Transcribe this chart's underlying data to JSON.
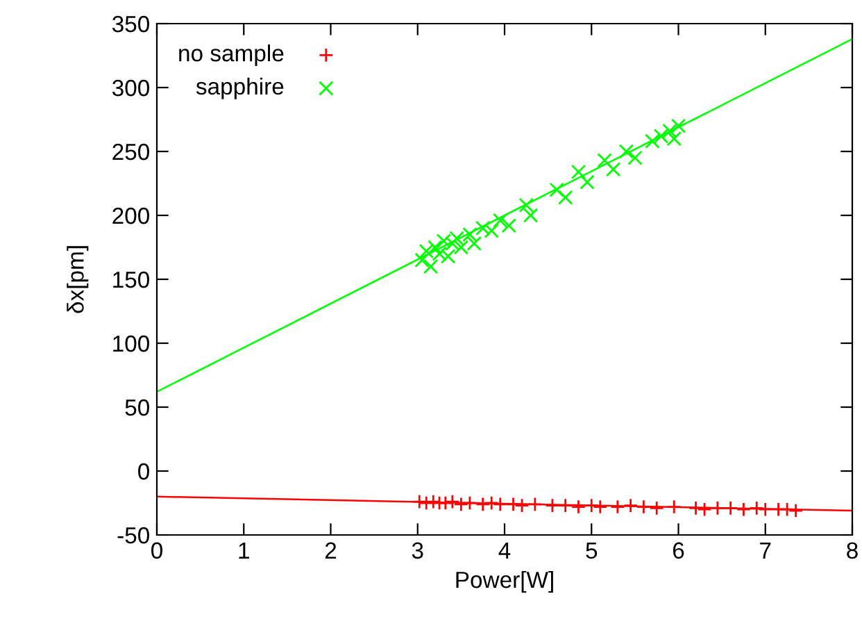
{
  "chart_data": {
    "type": "scatter",
    "xlabel": "Power[W]",
    "ylabel": "δx[pm]",
    "xlim": [
      0,
      8
    ],
    "ylim": [
      -50,
      350
    ],
    "xticks": [
      0,
      1,
      2,
      3,
      4,
      5,
      6,
      7,
      8
    ],
    "yticks": [
      -50,
      0,
      50,
      100,
      150,
      200,
      250,
      300,
      350
    ],
    "grid": false,
    "legend": "top left",
    "series": [
      {
        "name": "no sample",
        "marker": "plus",
        "color": "#ff0000",
        "x": [
          3.02,
          3.1,
          3.18,
          3.25,
          3.32,
          3.4,
          3.5,
          3.6,
          3.75,
          3.85,
          3.95,
          4.1,
          4.2,
          4.35,
          4.55,
          4.7,
          4.85,
          5.0,
          5.1,
          5.3,
          5.45,
          5.6,
          5.75,
          5.95,
          6.2,
          6.3,
          6.45,
          6.6,
          6.75,
          6.9,
          7.0,
          7.15,
          7.25,
          7.35
        ],
        "values": [
          -24,
          -25,
          -24,
          -25,
          -25,
          -24,
          -26,
          -25,
          -26,
          -25,
          -26,
          -26,
          -27,
          -26,
          -27,
          -27,
          -28,
          -27,
          -28,
          -28,
          -27,
          -28,
          -29,
          -28,
          -29,
          -30,
          -29,
          -29,
          -30,
          -29,
          -30,
          -30,
          -30,
          -31
        ]
      },
      {
        "name": "sapphire",
        "marker": "cross",
        "color": "#00ff00",
        "x": [
          3.05,
          3.1,
          3.15,
          3.2,
          3.25,
          3.3,
          3.35,
          3.4,
          3.45,
          3.5,
          3.6,
          3.65,
          3.75,
          3.85,
          3.95,
          4.05,
          4.25,
          4.3,
          4.6,
          4.7,
          4.85,
          4.95,
          5.15,
          5.25,
          5.4,
          5.5,
          5.7,
          5.8,
          5.9,
          5.95,
          6.0
        ],
        "values": [
          165,
          172,
          160,
          175,
          170,
          180,
          168,
          178,
          182,
          175,
          185,
          178,
          190,
          188,
          196,
          192,
          208,
          200,
          220,
          214,
          234,
          226,
          243,
          236,
          250,
          245,
          258,
          262,
          266,
          260,
          270
        ]
      },
      {
        "type": "line",
        "color": "#ff0000",
        "x": [
          0,
          8
        ],
        "values": [
          -20,
          -31
        ]
      },
      {
        "type": "line",
        "color": "#00ff00",
        "x": [
          0,
          8
        ],
        "values": [
          62,
          338
        ]
      }
    ]
  }
}
